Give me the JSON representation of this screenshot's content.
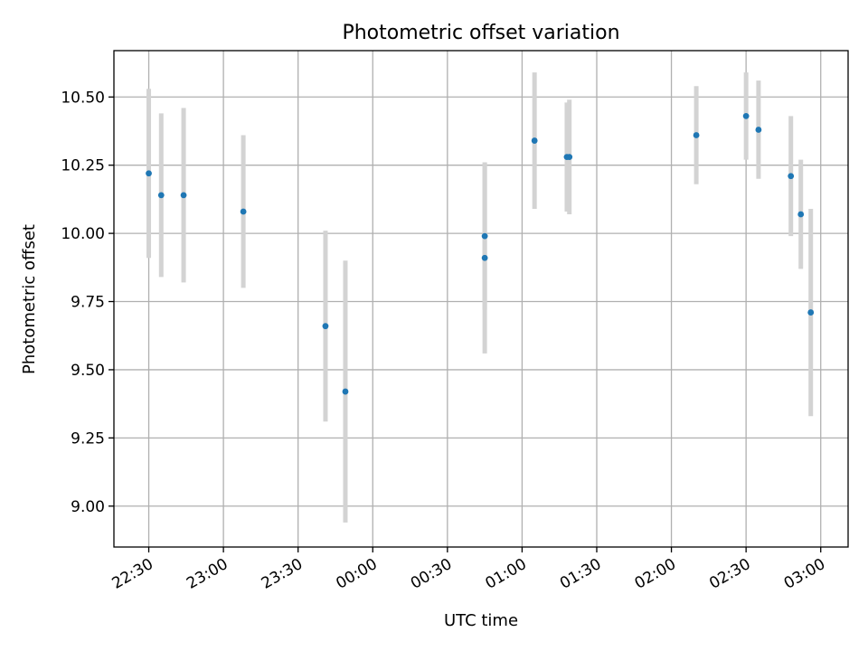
{
  "chart_data": {
    "type": "scatter",
    "title": "Photometric offset variation",
    "xlabel": "UTC time",
    "ylabel": "Photometric offset",
    "x_is_time": true,
    "xlim": [
      "22:16",
      "03:11"
    ],
    "ylim": [
      8.85,
      10.67
    ],
    "xticks": [
      {
        "t": "22:30",
        "label": "22:30"
      },
      {
        "t": "23:00",
        "label": "23:00"
      },
      {
        "t": "23:30",
        "label": "23:30"
      },
      {
        "t": "24:00",
        "label": "00:00"
      },
      {
        "t": "24:30",
        "label": "00:30"
      },
      {
        "t": "25:00",
        "label": "01:00"
      },
      {
        "t": "25:30",
        "label": "01:30"
      },
      {
        "t": "26:00",
        "label": "02:00"
      },
      {
        "t": "26:30",
        "label": "02:30"
      },
      {
        "t": "27:00",
        "label": "03:00"
      }
    ],
    "yticks": [
      {
        "v": 9.0,
        "label": "9.00"
      },
      {
        "v": 9.25,
        "label": "9.25"
      },
      {
        "v": 9.5,
        "label": "9.50"
      },
      {
        "v": 9.75,
        "label": "9.75"
      },
      {
        "v": 10.0,
        "label": "10.00"
      },
      {
        "v": 10.25,
        "label": "10.25"
      },
      {
        "v": 10.5,
        "label": "10.50"
      }
    ],
    "grid": true,
    "marker_color": "#1f77b4",
    "errorbar_color": "#d3d3d3",
    "points": [
      {
        "t": "22:30",
        "y": 10.22,
        "err": 0.31
      },
      {
        "t": "22:35",
        "y": 10.14,
        "err": 0.3
      },
      {
        "t": "22:44",
        "y": 10.14,
        "err": 0.32
      },
      {
        "t": "23:08",
        "y": 10.08,
        "err": 0.28
      },
      {
        "t": "23:41",
        "y": 9.66,
        "err": 0.35
      },
      {
        "t": "23:49",
        "y": 9.42,
        "err": 0.48
      },
      {
        "t": "00:45",
        "y": 9.99,
        "err": 0.27
      },
      {
        "t": "00:45",
        "y": 9.91,
        "err": 0.35
      },
      {
        "t": "01:05",
        "y": 10.34,
        "err": 0.25
      },
      {
        "t": "01:18",
        "y": 10.28,
        "err": 0.2
      },
      {
        "t": "01:19",
        "y": 10.28,
        "err": 0.21
      },
      {
        "t": "02:10",
        "y": 10.36,
        "err": 0.18
      },
      {
        "t": "02:30",
        "y": 10.43,
        "err": 0.16
      },
      {
        "t": "02:35",
        "y": 10.38,
        "err": 0.18
      },
      {
        "t": "02:48",
        "y": 10.21,
        "err": 0.22
      },
      {
        "t": "02:52",
        "y": 10.07,
        "err": 0.2
      },
      {
        "t": "02:56",
        "y": 9.71,
        "err": 0.38
      }
    ]
  }
}
